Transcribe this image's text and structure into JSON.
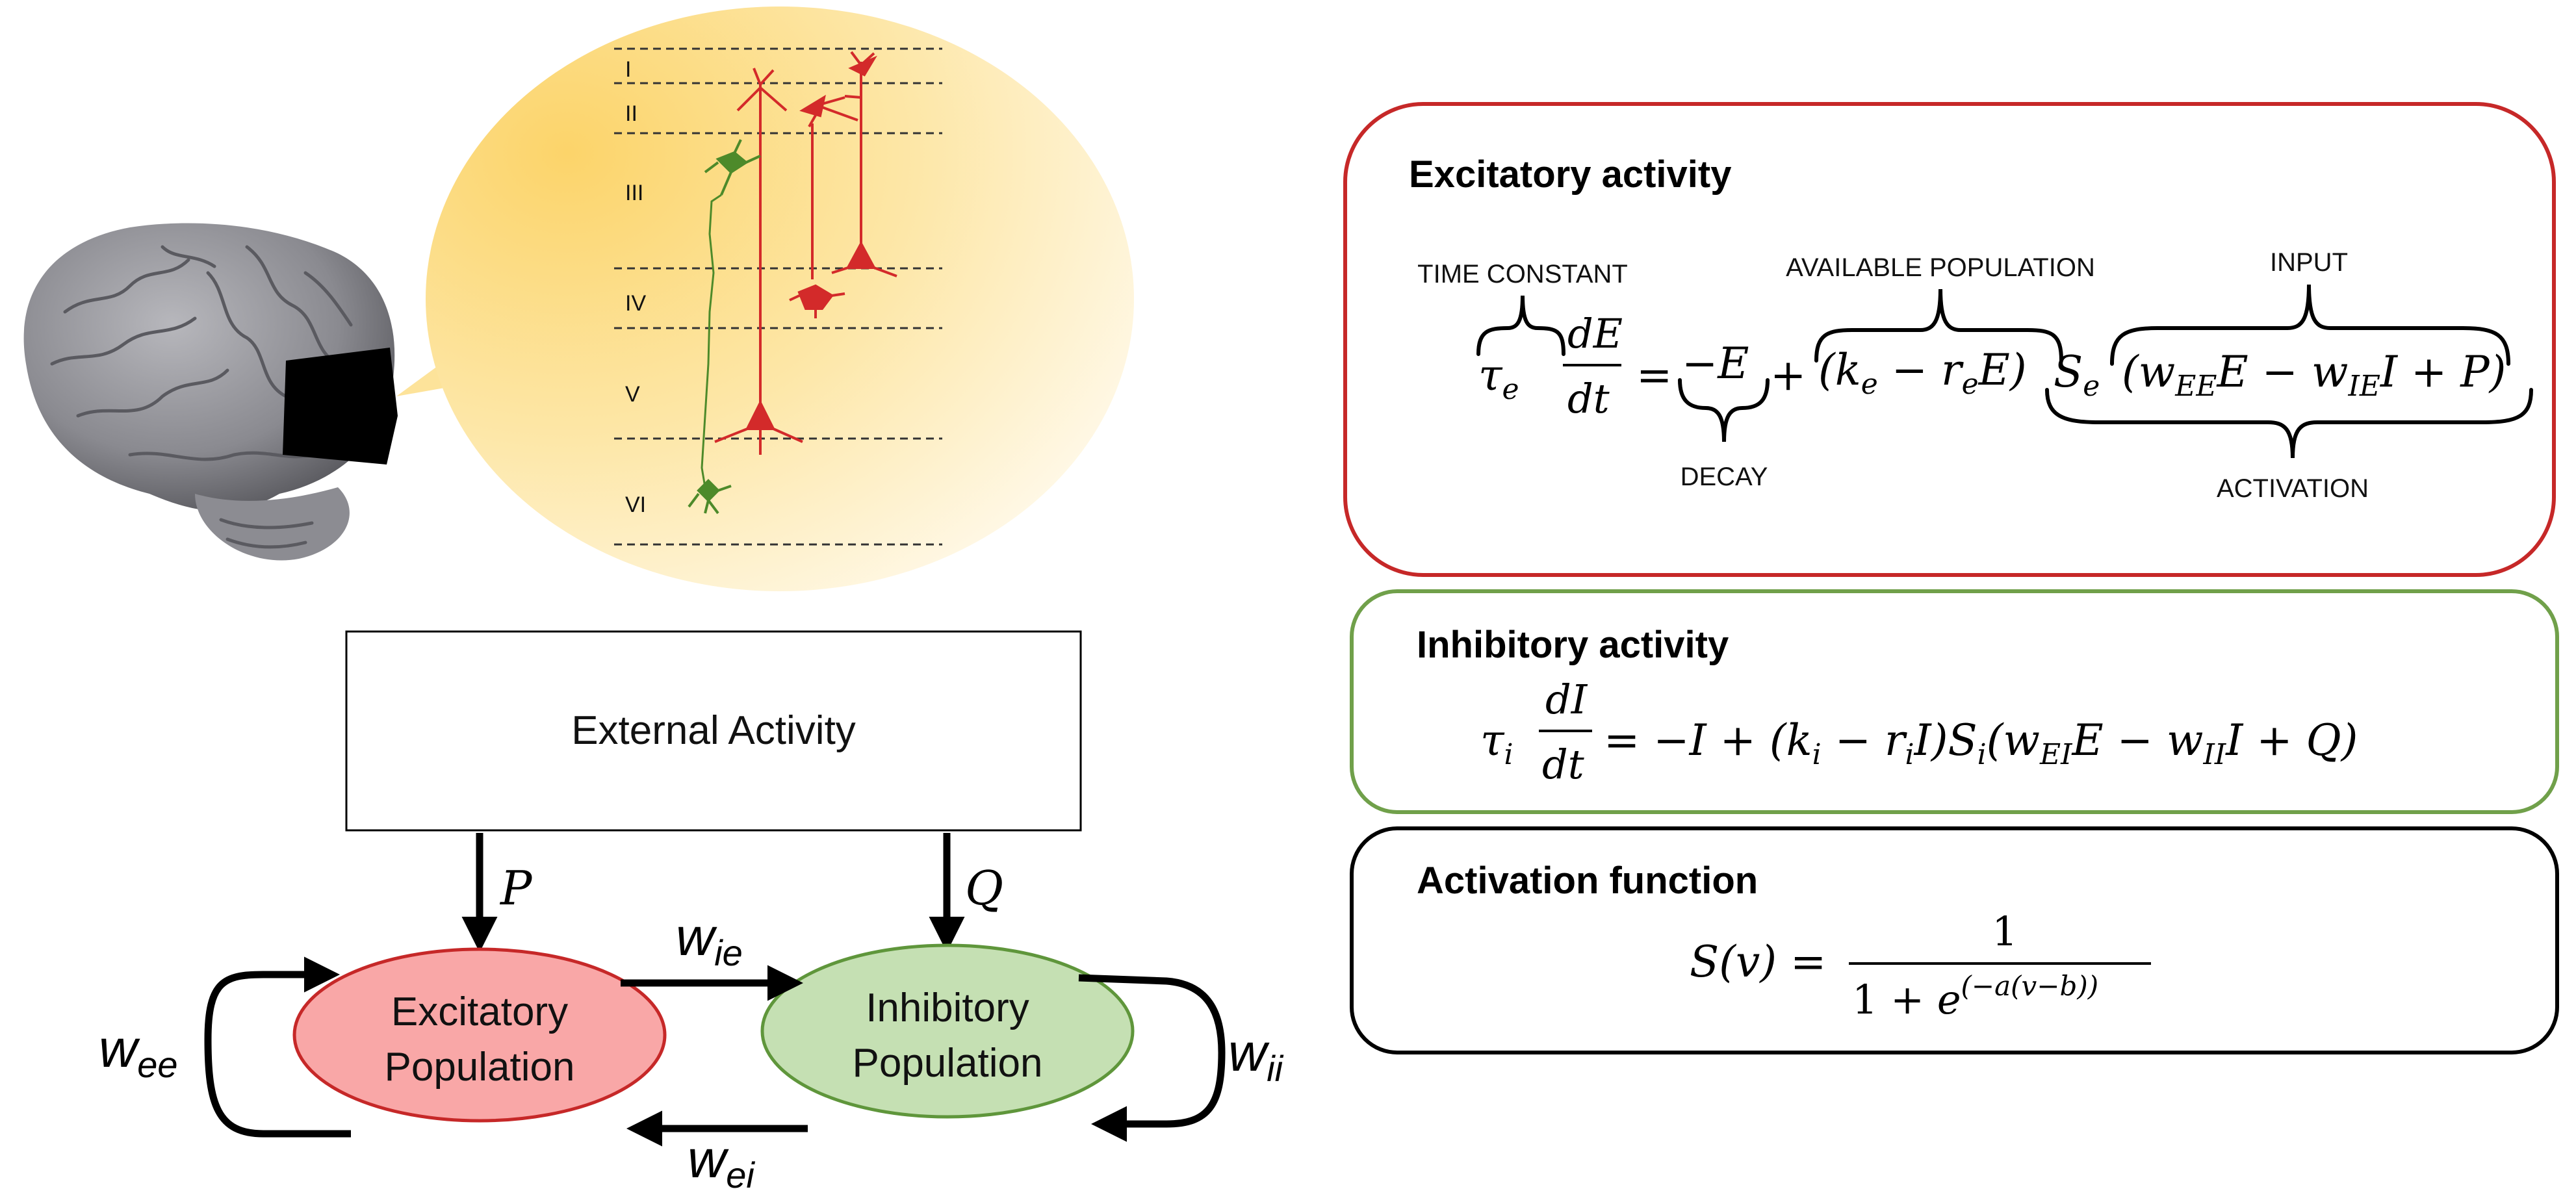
{
  "cortex": {
    "layers": [
      "I",
      "II",
      "III",
      "IV",
      "V",
      "VI"
    ],
    "colors": {
      "bubble_light": "#fff4d8",
      "bubble_dark": "#fcd772",
      "pyramidal": "#d32a2a",
      "interneuron": "#4d8a2a"
    }
  },
  "block_diagram": {
    "external_label": "External Activity",
    "excitatory_label_line1": "Excitatory",
    "excitatory_label_line2": "Population",
    "inhibitory_label_line1": "Inhibitory",
    "inhibitory_label_line2": "Population",
    "input_p": "P",
    "input_q": "Q",
    "w_ee": {
      "base": "w",
      "sub": "ee"
    },
    "w_ie": {
      "base": "w",
      "sub": "ie"
    },
    "w_ei": {
      "base": "w",
      "sub": "ei"
    },
    "w_ii": {
      "base": "w",
      "sub": "ii"
    },
    "colors": {
      "excitatory_fill": "#f9a7a7",
      "excitatory_stroke": "#c62828",
      "inhibitory_fill": "#c5e0b3",
      "inhibitory_stroke": "#5f963b"
    }
  },
  "panels": {
    "excitatory": {
      "title": "Excitatory activity",
      "time_constant": "TIME CONSTANT",
      "available_population": "AVAILABLE POPULATION",
      "input": "INPUT",
      "decay": "DECAY",
      "activation": "ACTIVATION",
      "border_color": "#c62828"
    },
    "inhibitory": {
      "title": "Inhibitory activity",
      "border_color": "#70a04a"
    },
    "activation_function": {
      "title": "Activation function",
      "border_color": "#000000"
    }
  }
}
